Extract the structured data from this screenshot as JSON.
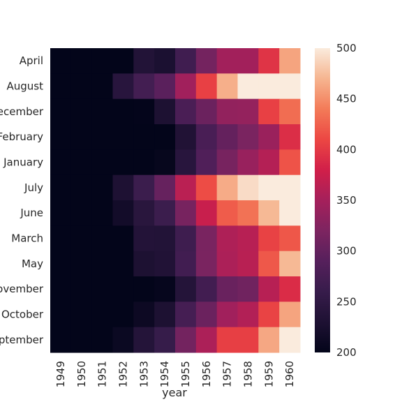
{
  "chart_data": {
    "type": "heatmap",
    "title": "",
    "xlabel": "year",
    "ylabel": "",
    "x": [
      "1949",
      "1950",
      "1951",
      "1952",
      "1953",
      "1954",
      "1955",
      "1956",
      "1957",
      "1958",
      "1959",
      "1960"
    ],
    "y": [
      "April",
      "August",
      "December",
      "February",
      "January",
      "July",
      "June",
      "March",
      "May",
      "November",
      "October",
      "September"
    ],
    "values": [
      [
        129,
        135,
        163,
        181,
        235,
        227,
        269,
        313,
        348,
        348,
        396,
        461
      ],
      [
        148,
        170,
        199,
        242,
        272,
        293,
        347,
        405,
        467,
        505,
        559,
        606
      ],
      [
        118,
        140,
        166,
        194,
        201,
        229,
        278,
        306,
        336,
        337,
        405,
        432
      ],
      [
        118,
        126,
        150,
        180,
        196,
        188,
        233,
        277,
        301,
        318,
        342,
        391
      ],
      [
        112,
        115,
        145,
        171,
        196,
        204,
        242,
        284,
        315,
        340,
        360,
        417
      ],
      [
        148,
        170,
        199,
        230,
        264,
        302,
        364,
        413,
        465,
        491,
        548,
        622
      ],
      [
        135,
        149,
        178,
        218,
        243,
        264,
        315,
        374,
        422,
        435,
        472,
        535
      ],
      [
        132,
        141,
        178,
        193,
        236,
        235,
        267,
        317,
        356,
        362,
        406,
        419
      ],
      [
        121,
        125,
        172,
        183,
        229,
        234,
        270,
        318,
        355,
        363,
        420,
        472
      ],
      [
        104,
        114,
        146,
        172,
        180,
        203,
        237,
        271,
        305,
        310,
        362,
        390
      ],
      [
        119,
        133,
        162,
        191,
        211,
        229,
        274,
        306,
        347,
        359,
        407,
        461
      ],
      [
        136,
        158,
        184,
        209,
        237,
        259,
        312,
        355,
        404,
        404,
        463,
        508
      ]
    ],
    "colorbar": {
      "min": 200,
      "max": 500,
      "ticks": [
        "200",
        "250",
        "300",
        "350",
        "400",
        "450",
        "500"
      ]
    }
  }
}
